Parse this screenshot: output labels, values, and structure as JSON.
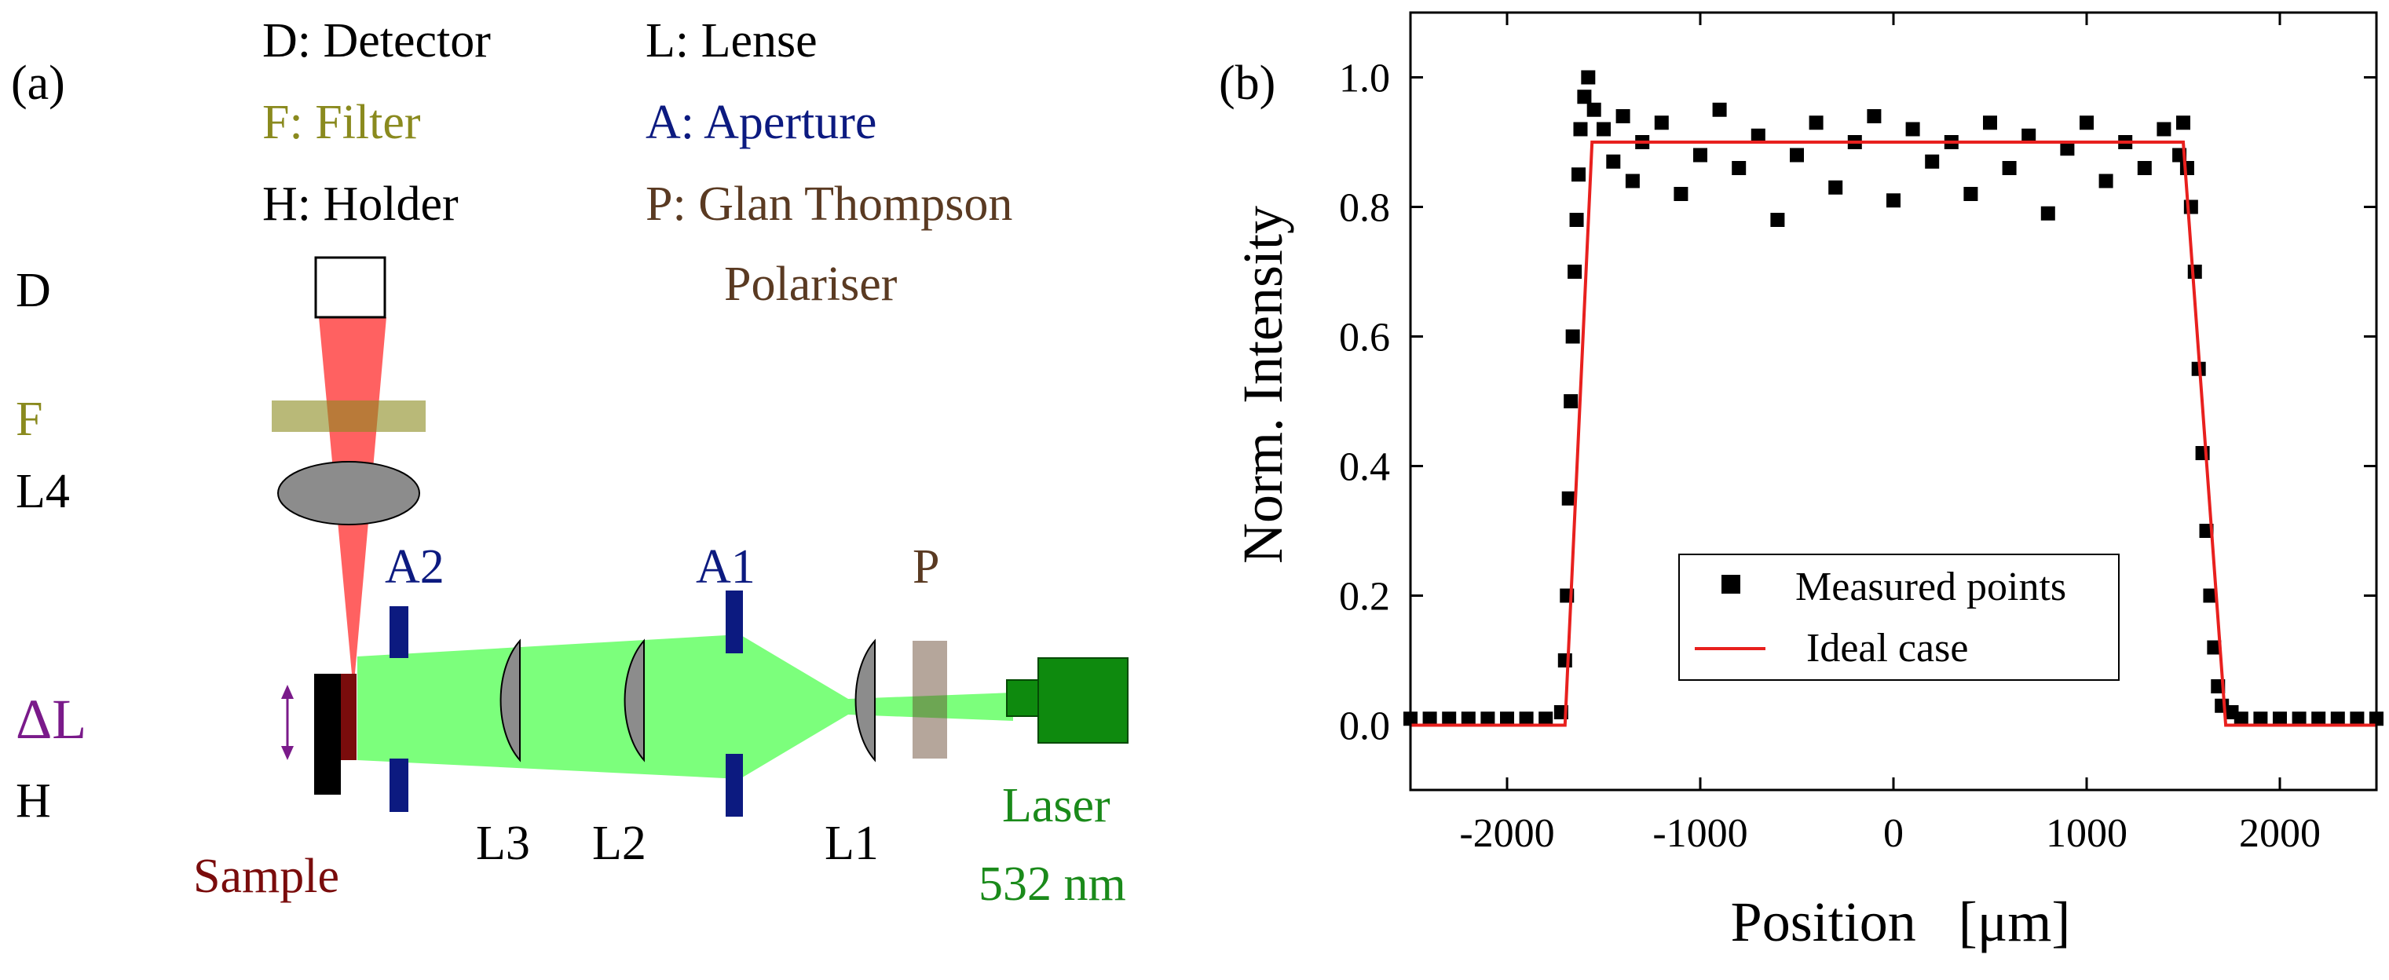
{
  "panel_a": {
    "label": "(a)",
    "legend": {
      "detector": "D: Detector",
      "filter": "F: Filter",
      "holder": "H: Holder",
      "lense": "L: Lense",
      "aperture": "A: Aperture",
      "polariser_line1": "P: Glan Thompson",
      "polariser_line2": "Polariser"
    },
    "side_labels": {
      "d": "D",
      "f": "F",
      "l4": "L4",
      "delta_l": "ΔL",
      "h": "H"
    },
    "component_labels": {
      "a2": "A2",
      "a1": "A1",
      "p": "P",
      "sample": "Sample",
      "l3": "L3",
      "l2": "L2",
      "l1": "L1",
      "laser_line1": "Laser",
      "laser_line2": "532 nm"
    },
    "colors": {
      "filter": "#8a8a1e",
      "aperture": "#0c1a80",
      "polariser": "#5a3a22",
      "delta": "#7a1a8a",
      "sample": "#7a0c0c",
      "laser": "#1a8a1a",
      "beam_green": "#7cff7c",
      "beam_red": "#ff5050"
    }
  },
  "panel_b": {
    "label": "(b)"
  },
  "chart_data": {
    "type": "scatter",
    "xlabel": "Position   [μm]",
    "ylabel": "Norm. Intensity",
    "xlim": [
      -2500,
      2500
    ],
    "ylim": [
      -0.1,
      1.1
    ],
    "xticks": [
      -2000,
      -1000,
      0,
      1000,
      2000
    ],
    "xtick_labels": [
      "-2000",
      "-1000",
      "0",
      "1000",
      "2000"
    ],
    "yticks": [
      0.0,
      0.2,
      0.4,
      0.6,
      0.8,
      1.0
    ],
    "ytick_labels": [
      "0.0",
      "0.2",
      "0.4",
      "0.6",
      "0.8",
      "1.0"
    ],
    "legend_position": "lower-center",
    "series": [
      {
        "name": "Measured points",
        "kind": "scatter",
        "color": "#000000",
        "points": [
          [
            -2500,
            0.01
          ],
          [
            -2400,
            0.01
          ],
          [
            -2300,
            0.01
          ],
          [
            -2200,
            0.01
          ],
          [
            -2100,
            0.01
          ],
          [
            -2000,
            0.01
          ],
          [
            -1900,
            0.01
          ],
          [
            -1800,
            0.01
          ],
          [
            -1720,
            0.02
          ],
          [
            -1700,
            0.1
          ],
          [
            -1690,
            0.2
          ],
          [
            -1680,
            0.35
          ],
          [
            -1670,
            0.5
          ],
          [
            -1660,
            0.6
          ],
          [
            -1650,
            0.7
          ],
          [
            -1640,
            0.78
          ],
          [
            -1630,
            0.85
          ],
          [
            -1620,
            0.92
          ],
          [
            -1600,
            0.97
          ],
          [
            -1580,
            1.0
          ],
          [
            -1550,
            0.95
          ],
          [
            -1500,
            0.92
          ],
          [
            -1450,
            0.87
          ],
          [
            -1400,
            0.94
          ],
          [
            -1350,
            0.84
          ],
          [
            -1300,
            0.9
          ],
          [
            -1200,
            0.93
          ],
          [
            -1100,
            0.82
          ],
          [
            -1000,
            0.88
          ],
          [
            -900,
            0.95
          ],
          [
            -800,
            0.86
          ],
          [
            -700,
            0.91
          ],
          [
            -600,
            0.78
          ],
          [
            -500,
            0.88
          ],
          [
            -400,
            0.93
          ],
          [
            -300,
            0.83
          ],
          [
            -200,
            0.9
          ],
          [
            -100,
            0.94
          ],
          [
            0,
            0.81
          ],
          [
            100,
            0.92
          ],
          [
            200,
            0.87
          ],
          [
            300,
            0.9
          ],
          [
            400,
            0.82
          ],
          [
            500,
            0.93
          ],
          [
            600,
            0.86
          ],
          [
            700,
            0.91
          ],
          [
            800,
            0.79
          ],
          [
            900,
            0.89
          ],
          [
            1000,
            0.93
          ],
          [
            1100,
            0.84
          ],
          [
            1200,
            0.9
          ],
          [
            1300,
            0.86
          ],
          [
            1400,
            0.92
          ],
          [
            1480,
            0.88
          ],
          [
            1500,
            0.93
          ],
          [
            1520,
            0.86
          ],
          [
            1540,
            0.8
          ],
          [
            1560,
            0.7
          ],
          [
            1580,
            0.55
          ],
          [
            1600,
            0.42
          ],
          [
            1620,
            0.3
          ],
          [
            1640,
            0.2
          ],
          [
            1660,
            0.12
          ],
          [
            1680,
            0.06
          ],
          [
            1700,
            0.03
          ],
          [
            1750,
            0.02
          ],
          [
            1800,
            0.01
          ],
          [
            1900,
            0.01
          ],
          [
            2000,
            0.01
          ],
          [
            2100,
            0.01
          ],
          [
            2200,
            0.01
          ],
          [
            2300,
            0.01
          ],
          [
            2400,
            0.01
          ],
          [
            2500,
            0.01
          ]
        ]
      },
      {
        "name": "Ideal case",
        "kind": "line",
        "color": "#e8201e",
        "points": [
          [
            -2500,
            0.0
          ],
          [
            -1700,
            0.0
          ],
          [
            -1560,
            0.9
          ],
          [
            1500,
            0.9
          ],
          [
            1720,
            0.0
          ],
          [
            2500,
            0.0
          ]
        ]
      }
    ]
  }
}
